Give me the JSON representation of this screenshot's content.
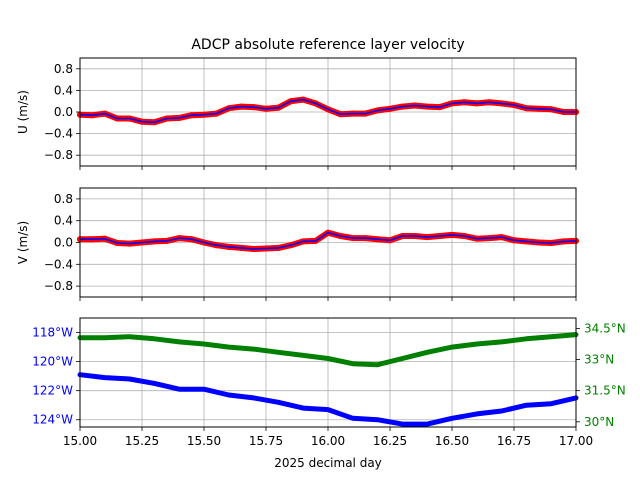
{
  "title": "ADCP absolute reference layer velocity",
  "colors": {
    "u_points": "#ff0000",
    "u_line": "#0000ff",
    "lon": "#0000ff",
    "lat": "#008000",
    "grid": "#b0b0b0"
  },
  "chart_data": [
    {
      "type": "line",
      "ylabel": "U (m/s)",
      "xlim": [
        15.0,
        17.0
      ],
      "ylim": [
        -1.0,
        1.0
      ],
      "yticks": [
        -0.8,
        -0.4,
        0.0,
        0.4,
        0.8
      ],
      "ytick_labels": [
        "−0.8",
        "−0.4",
        "0.0",
        "0.4",
        "0.8"
      ],
      "grid": true,
      "series": [
        {
          "style": "points+line",
          "x": [
            15.0,
            15.05,
            15.1,
            15.15,
            15.2,
            15.25,
            15.3,
            15.35,
            15.4,
            15.45,
            15.5,
            15.55,
            15.6,
            15.65,
            15.7,
            15.75,
            15.8,
            15.85,
            15.9,
            15.95,
            16.0,
            16.05,
            16.1,
            16.15,
            16.2,
            16.25,
            16.3,
            16.35,
            16.4,
            16.45,
            16.5,
            16.55,
            16.6,
            16.65,
            16.7,
            16.75,
            16.8,
            16.85,
            16.9,
            16.95,
            17.0
          ],
          "values": [
            -0.05,
            -0.06,
            -0.03,
            -0.12,
            -0.12,
            -0.18,
            -0.19,
            -0.12,
            -0.11,
            -0.06,
            -0.05,
            -0.03,
            0.07,
            0.1,
            0.09,
            0.06,
            0.08,
            0.2,
            0.23,
            0.16,
            0.05,
            -0.04,
            -0.03,
            -0.03,
            0.03,
            0.06,
            0.1,
            0.12,
            0.1,
            0.09,
            0.16,
            0.18,
            0.16,
            0.18,
            0.16,
            0.13,
            0.07,
            0.06,
            0.05,
            0.0,
            0.0
          ]
        }
      ]
    },
    {
      "type": "line",
      "ylabel": "V (m/s)",
      "xlim": [
        15.0,
        17.0
      ],
      "ylim": [
        -1.0,
        1.0
      ],
      "yticks": [
        -0.8,
        -0.4,
        0.0,
        0.4,
        0.8
      ],
      "ytick_labels": [
        "−0.8",
        "−0.4",
        "0.0",
        "0.4",
        "0.8"
      ],
      "grid": true,
      "series": [
        {
          "style": "points+line",
          "x": [
            15.0,
            15.05,
            15.1,
            15.15,
            15.2,
            15.25,
            15.3,
            15.35,
            15.4,
            15.45,
            15.5,
            15.55,
            15.6,
            15.65,
            15.7,
            15.75,
            15.8,
            15.85,
            15.9,
            15.95,
            16.0,
            16.05,
            16.1,
            16.15,
            16.2,
            16.25,
            16.3,
            16.35,
            16.4,
            16.45,
            16.5,
            16.55,
            16.6,
            16.65,
            16.7,
            16.75,
            16.8,
            16.85,
            16.9,
            16.95,
            17.0
          ],
          "values": [
            0.06,
            0.06,
            0.07,
            -0.01,
            -0.02,
            0.0,
            0.02,
            0.03,
            0.08,
            0.06,
            0.0,
            -0.05,
            -0.08,
            -0.1,
            -0.12,
            -0.11,
            -0.1,
            -0.05,
            0.02,
            0.03,
            0.18,
            0.12,
            0.08,
            0.08,
            0.06,
            0.04,
            0.12,
            0.12,
            0.1,
            0.12,
            0.14,
            0.12,
            0.07,
            0.08,
            0.1,
            0.04,
            0.02,
            0.0,
            -0.01,
            0.02,
            0.03
          ]
        }
      ]
    },
    {
      "type": "line",
      "xlabel": "2025 decimal day",
      "xlim": [
        15.0,
        17.0
      ],
      "xticks": [
        15.0,
        15.25,
        15.5,
        15.75,
        16.0,
        16.25,
        16.5,
        16.75,
        17.0
      ],
      "xtick_labels": [
        "15.00",
        "15.25",
        "15.50",
        "15.75",
        "16.00",
        "16.25",
        "16.50",
        "16.75",
        "17.00"
      ],
      "grid": true,
      "left_axis": {
        "ylim": [
          -124.5,
          -117.0
        ],
        "yticks": [
          -118,
          -120,
          -122,
          -124
        ],
        "ytick_labels": [
          "118°W",
          "120°W",
          "122°W",
          "124°W"
        ]
      },
      "right_axis": {
        "ylim": [
          29.75,
          35.0
        ],
        "yticks": [
          34.5,
          33.0,
          31.5,
          30.0
        ],
        "ytick_labels": [
          "34.5°N",
          "33°N",
          "31.5°N",
          "30°N"
        ]
      },
      "series": [
        {
          "axis": "left",
          "x": [
            15.0,
            15.1,
            15.2,
            15.3,
            15.4,
            15.5,
            15.6,
            15.7,
            15.8,
            15.9,
            16.0,
            16.1,
            16.2,
            16.3,
            16.4,
            16.5,
            16.6,
            16.7,
            16.8,
            16.9,
            17.0
          ],
          "values": [
            -120.9,
            -121.1,
            -121.2,
            -121.5,
            -121.9,
            -121.9,
            -122.3,
            -122.5,
            -122.8,
            -123.2,
            -123.3,
            -123.9,
            -124.0,
            -124.3,
            -124.3,
            -123.9,
            -123.6,
            -123.4,
            -123.0,
            -122.9,
            -122.5
          ]
        },
        {
          "axis": "right",
          "x": [
            15.0,
            15.1,
            15.2,
            15.3,
            15.4,
            15.5,
            15.6,
            15.7,
            15.8,
            15.9,
            16.0,
            16.1,
            16.2,
            16.3,
            16.4,
            16.5,
            16.6,
            16.7,
            16.8,
            16.9,
            17.0
          ],
          "values": [
            34.05,
            34.05,
            34.1,
            34.0,
            33.85,
            33.75,
            33.6,
            33.5,
            33.35,
            33.2,
            33.05,
            32.8,
            32.75,
            33.05,
            33.35,
            33.6,
            33.75,
            33.85,
            34.0,
            34.1,
            34.2
          ]
        }
      ]
    }
  ]
}
